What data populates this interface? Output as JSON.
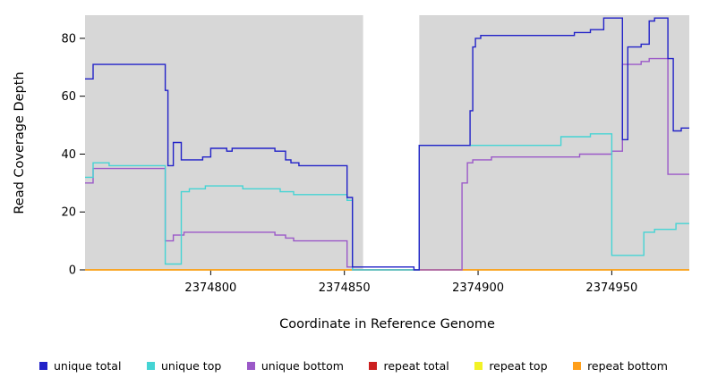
{
  "chart_data": {
    "type": "line",
    "step_mode": "after",
    "title": "",
    "xlabel": "Coordinate in Reference Genome",
    "ylabel": "Read Coverage Depth",
    "xlim": [
      2374753,
      2374979
    ],
    "ylim": [
      0,
      88
    ],
    "xticks": [
      2374800,
      2374850,
      2374900,
      2374950
    ],
    "yticks": [
      0,
      20,
      40,
      60,
      80
    ],
    "plot_background": "#d7d7d7",
    "page_background": "#ffffff",
    "gap_region": {
      "x0": 2374857,
      "x1": 2374878,
      "color": "#ffffff"
    },
    "legend_position": "bottom",
    "grid": false,
    "draw_order": [
      3,
      4,
      5,
      2,
      1,
      0
    ],
    "series": [
      {
        "id": "unique-total",
        "name": "unique total",
        "color": "#2222c8",
        "points": [
          [
            2374753,
            66
          ],
          [
            2374756,
            71
          ],
          [
            2374783,
            62
          ],
          [
            2374784,
            36
          ],
          [
            2374786,
            44
          ],
          [
            2374789,
            38
          ],
          [
            2374797,
            39
          ],
          [
            2374800,
            42
          ],
          [
            2374806,
            41
          ],
          [
            2374808,
            42
          ],
          [
            2374824,
            41
          ],
          [
            2374828,
            38
          ],
          [
            2374830,
            37
          ],
          [
            2374833,
            36
          ],
          [
            2374851,
            25
          ],
          [
            2374853,
            1
          ],
          [
            2374876,
            0
          ],
          [
            2374878,
            43
          ],
          [
            2374897,
            55
          ],
          [
            2374898,
            77
          ],
          [
            2374899,
            80
          ],
          [
            2374901,
            81
          ],
          [
            2374936,
            82
          ],
          [
            2374942,
            83
          ],
          [
            2374947,
            87
          ],
          [
            2374954,
            45
          ],
          [
            2374956,
            77
          ],
          [
            2374961,
            78
          ],
          [
            2374964,
            86
          ],
          [
            2374966,
            87
          ],
          [
            2374971,
            73
          ],
          [
            2374973,
            48
          ],
          [
            2374976,
            49
          ]
        ]
      },
      {
        "id": "unique-top",
        "name": "unique top",
        "color": "#45d4d4",
        "points": [
          [
            2374753,
            32
          ],
          [
            2374756,
            37
          ],
          [
            2374762,
            36
          ],
          [
            2374783,
            2
          ],
          [
            2374789,
            27
          ],
          [
            2374792,
            28
          ],
          [
            2374798,
            29
          ],
          [
            2374812,
            28
          ],
          [
            2374826,
            27
          ],
          [
            2374831,
            26
          ],
          [
            2374851,
            24
          ],
          [
            2374853,
            0
          ],
          [
            2374878,
            43
          ],
          [
            2374931,
            46
          ],
          [
            2374942,
            47
          ],
          [
            2374950,
            5
          ],
          [
            2374962,
            13
          ],
          [
            2374966,
            14
          ],
          [
            2374974,
            16
          ]
        ]
      },
      {
        "id": "unique-bottom",
        "name": "unique bottom",
        "color": "#9b59c8",
        "points": [
          [
            2374753,
            30
          ],
          [
            2374756,
            35
          ],
          [
            2374783,
            10
          ],
          [
            2374786,
            12
          ],
          [
            2374790,
            13
          ],
          [
            2374824,
            12
          ],
          [
            2374828,
            11
          ],
          [
            2374831,
            10
          ],
          [
            2374851,
            1
          ],
          [
            2374853,
            0
          ],
          [
            2374894,
            30
          ],
          [
            2374896,
            37
          ],
          [
            2374898,
            38
          ],
          [
            2374905,
            39
          ],
          [
            2374938,
            40
          ],
          [
            2374950,
            41
          ],
          [
            2374954,
            71
          ],
          [
            2374961,
            72
          ],
          [
            2374964,
            73
          ],
          [
            2374971,
            33
          ]
        ]
      },
      {
        "id": "repeat-total",
        "name": "repeat total",
        "color": "#cc2020",
        "points": [
          [
            2374753,
            0
          ]
        ]
      },
      {
        "id": "repeat-top",
        "name": "repeat top",
        "color": "#f2f225",
        "points": [
          [
            2374753,
            0
          ]
        ]
      },
      {
        "id": "repeat-bottom",
        "name": "repeat bottom",
        "color": "#ff9f1a",
        "points": [
          [
            2374753,
            0
          ]
        ]
      }
    ]
  }
}
